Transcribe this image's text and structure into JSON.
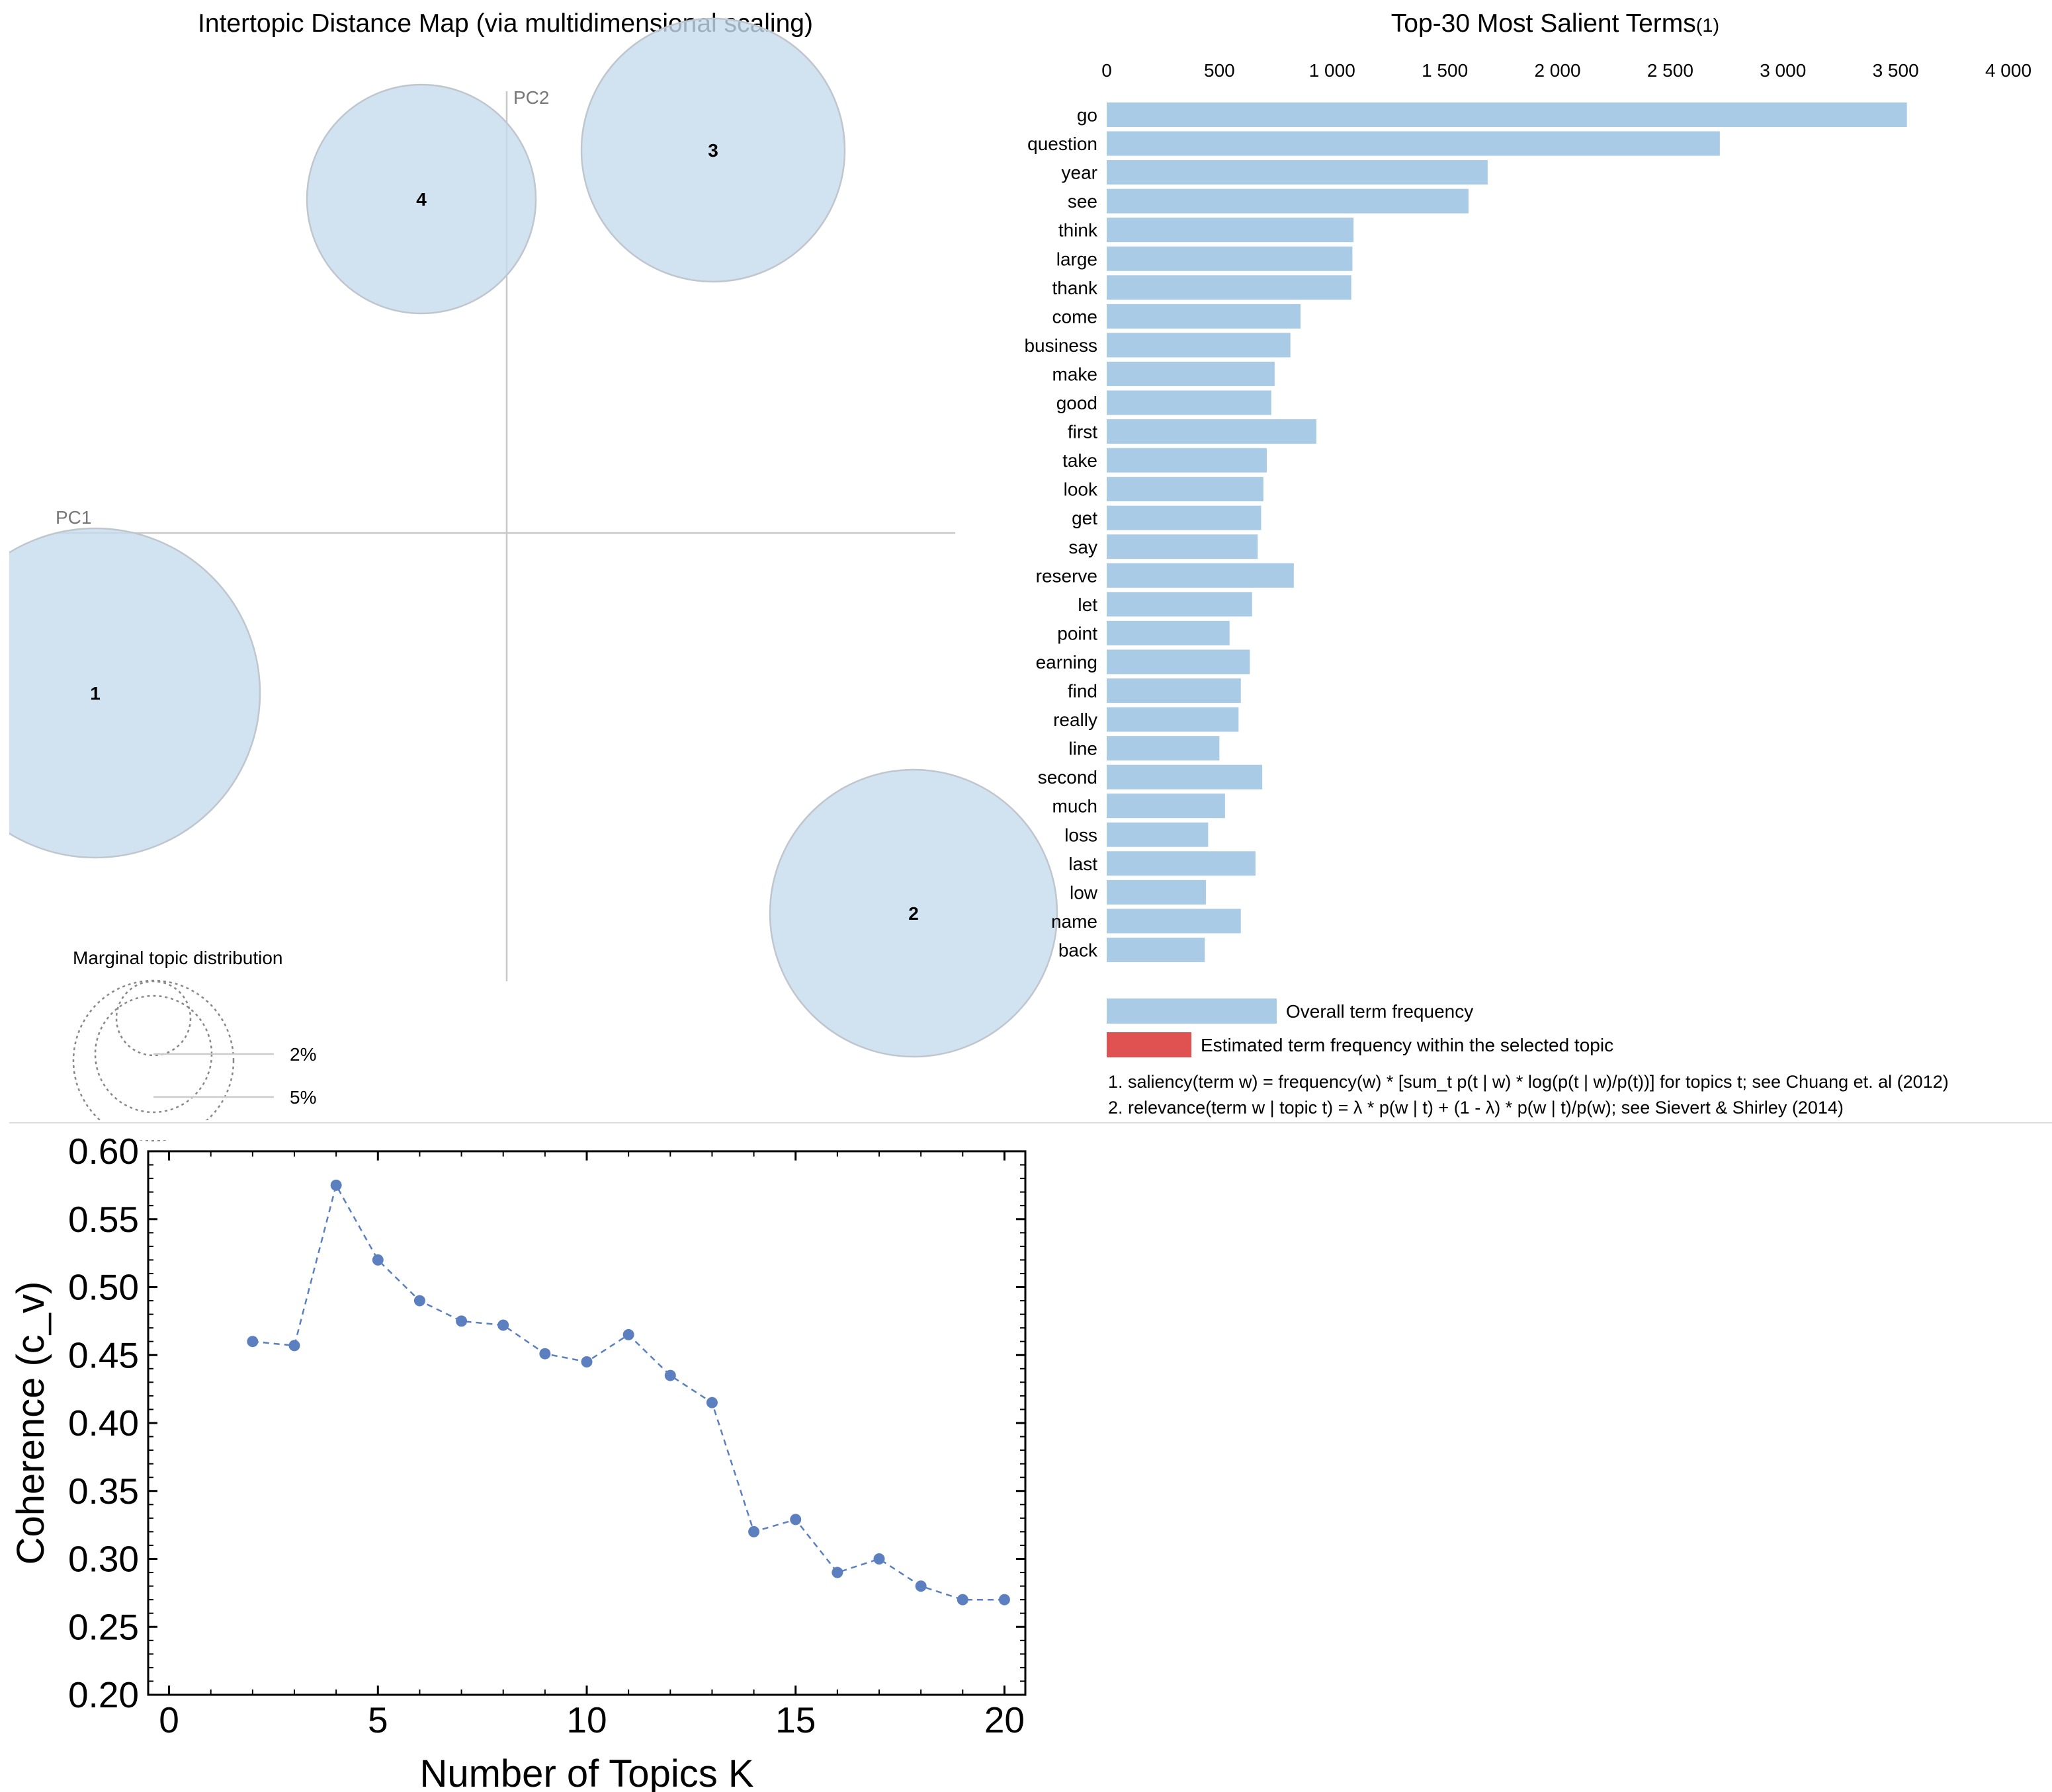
{
  "chart_data": [
    {
      "type": "scatter",
      "title": "Intertopic Distance Map (via multidimensional scaling)",
      "xlabel": "PC1",
      "ylabel": "PC2",
      "topics": [
        {
          "label": "1",
          "pc1": -0.3,
          "pc2": -0.12,
          "size_pct": 32
        },
        {
          "label": "2",
          "pc1": 0.3,
          "pc2": -0.27,
          "size_pct": 22
        },
        {
          "label": "3",
          "pc1": 0.15,
          "pc2": 0.38,
          "size_pct": 24
        },
        {
          "label": "4",
          "pc1": -0.06,
          "pc2": 0.34,
          "size_pct": 18
        }
      ],
      "marginal_legend": {
        "title": "Marginal topic distribution",
        "levels": [
          "2%",
          "5%"
        ]
      }
    },
    {
      "type": "bar",
      "orientation": "horizontal",
      "title": "Top-30 Most Salient Terms",
      "title_superscript": "(1)",
      "xlim": [
        0,
        4000
      ],
      "xticks": [
        0,
        500,
        1000,
        1500,
        2000,
        2500,
        3000,
        3500,
        4000
      ],
      "xtick_labels": [
        "0",
        "500",
        "1 000",
        "1 500",
        "2 000",
        "2 500",
        "3 000",
        "3 500",
        "4 000"
      ],
      "categories": [
        "go",
        "question",
        "year",
        "see",
        "think",
        "large",
        "thank",
        "come",
        "business",
        "make",
        "good",
        "first",
        "take",
        "look",
        "get",
        "say",
        "reserve",
        "let",
        "point",
        "earning",
        "find",
        "really",
        "line",
        "second",
        "much",
        "loss",
        "last",
        "low",
        "name",
        "back"
      ],
      "values": [
        3550,
        2720,
        1690,
        1605,
        1095,
        1090,
        1085,
        860,
        815,
        745,
        730,
        930,
        710,
        695,
        685,
        670,
        830,
        645,
        545,
        635,
        595,
        585,
        500,
        690,
        525,
        450,
        660,
        440,
        595,
        435
      ],
      "legend": [
        {
          "label": "Overall term frequency",
          "color": "#a9cbe5"
        },
        {
          "label": "Estimated term frequency within the selected topic",
          "color": "#e05152"
        }
      ],
      "notes": [
        "1. saliency(term w) = frequency(w) * [sum_t p(t | w) * log(p(t | w)/p(t))] for topics t; see Chuang et. al (2012)",
        "2. relevance(term w | topic t) = λ * p(w | t) + (1 - λ) * p(w | t)/p(w); see Sievert & Shirley (2014)"
      ]
    },
    {
      "type": "line",
      "xlabel": "Number of Topics K",
      "ylabel": "Coherence (c_v)",
      "xlim": [
        -0.5,
        20.5
      ],
      "ylim": [
        0.2,
        0.6
      ],
      "xticks": [
        0,
        5,
        10,
        15,
        20
      ],
      "yticks": [
        0.2,
        0.25,
        0.3,
        0.35,
        0.4,
        0.45,
        0.5,
        0.55,
        0.6
      ],
      "ytick_labels": [
        "0.20",
        "0.25",
        "0.30",
        "0.35",
        "0.40",
        "0.45",
        "0.50",
        "0.55",
        "0.60"
      ],
      "x": [
        2,
        3,
        4,
        5,
        6,
        7,
        8,
        9,
        10,
        11,
        12,
        13,
        14,
        15,
        16,
        17,
        18,
        19,
        20
      ],
      "y": [
        0.46,
        0.457,
        0.575,
        0.52,
        0.49,
        0.475,
        0.472,
        0.451,
        0.445,
        0.465,
        0.435,
        0.415,
        0.32,
        0.329,
        0.29,
        0.3,
        0.28,
        0.27,
        0.27
      ],
      "color": "#5b7fbf"
    }
  ]
}
